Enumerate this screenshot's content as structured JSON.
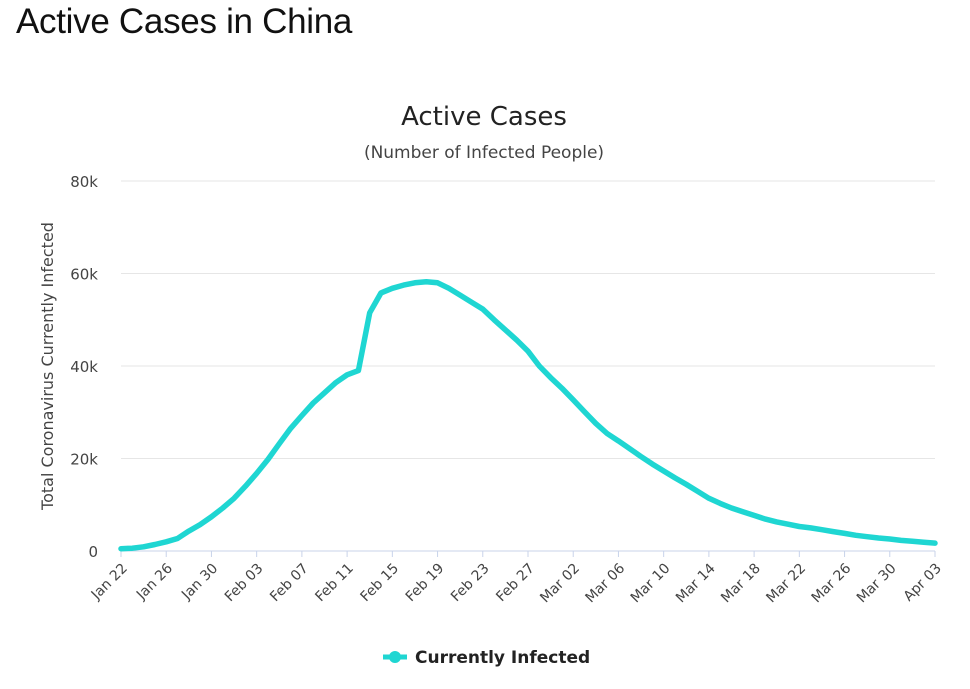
{
  "page": {
    "heading": "Active Cases in China"
  },
  "chart_data": {
    "type": "line",
    "title": "Active Cases",
    "subtitle": "(Number of Infected People)",
    "xlabel": "",
    "ylabel": "Total Coronavirus Currently Infected",
    "ylim": [
      0,
      80000
    ],
    "yticks": [
      0,
      20000,
      40000,
      60000,
      80000
    ],
    "ytick_labels": [
      "0",
      "20k",
      "40k",
      "60k",
      "80k"
    ],
    "xtick_labels": [
      "Jan 22",
      "Jan 26",
      "Jan 30",
      "Feb 03",
      "Feb 07",
      "Feb 11",
      "Feb 15",
      "Feb 19",
      "Feb 23",
      "Feb 27",
      "Mar 02",
      "Mar 06",
      "Mar 10",
      "Mar 14",
      "Mar 18",
      "Mar 22",
      "Mar 26",
      "Mar 30",
      "Apr 03"
    ],
    "x_start": "2020-01-22",
    "x_end": "2020-04-03",
    "grid": true,
    "legend_position": "bottom-center",
    "color": "#1fd6d2",
    "series": [
      {
        "name": "Currently Infected",
        "x": [
          "2020-01-22",
          "2020-01-23",
          "2020-01-24",
          "2020-01-25",
          "2020-01-26",
          "2020-01-27",
          "2020-01-28",
          "2020-01-29",
          "2020-01-30",
          "2020-01-31",
          "2020-02-01",
          "2020-02-02",
          "2020-02-03",
          "2020-02-04",
          "2020-02-05",
          "2020-02-06",
          "2020-02-07",
          "2020-02-08",
          "2020-02-09",
          "2020-02-10",
          "2020-02-11",
          "2020-02-12",
          "2020-02-13",
          "2020-02-14",
          "2020-02-15",
          "2020-02-16",
          "2020-02-17",
          "2020-02-18",
          "2020-02-19",
          "2020-02-20",
          "2020-02-21",
          "2020-02-22",
          "2020-02-23",
          "2020-02-24",
          "2020-02-25",
          "2020-02-26",
          "2020-02-27",
          "2020-02-28",
          "2020-02-29",
          "2020-03-01",
          "2020-03-02",
          "2020-03-03",
          "2020-03-04",
          "2020-03-05",
          "2020-03-06",
          "2020-03-07",
          "2020-03-08",
          "2020-03-09",
          "2020-03-10",
          "2020-03-11",
          "2020-03-12",
          "2020-03-13",
          "2020-03-14",
          "2020-03-15",
          "2020-03-16",
          "2020-03-17",
          "2020-03-18",
          "2020-03-19",
          "2020-03-20",
          "2020-03-21",
          "2020-03-22",
          "2020-03-23",
          "2020-03-24",
          "2020-03-25",
          "2020-03-26",
          "2020-03-27",
          "2020-03-28",
          "2020-03-29",
          "2020-03-30",
          "2020-03-31",
          "2020-04-01",
          "2020-04-02",
          "2020-04-03"
        ],
        "values": [
          500,
          600,
          900,
          1400,
          2000,
          2700,
          4300,
          5700,
          7400,
          9300,
          11400,
          14000,
          16800,
          19800,
          23200,
          26500,
          29300,
          32000,
          34200,
          36400,
          38100,
          39000,
          51500,
          55800,
          56800,
          57500,
          58000,
          58200,
          58000,
          56800,
          55300,
          53800,
          52300,
          50000,
          47800,
          45600,
          43200,
          40000,
          37500,
          35200,
          32700,
          30100,
          27600,
          25400,
          23800,
          22100,
          20400,
          18800,
          17300,
          15800,
          14400,
          12900,
          11400,
          10300,
          9300,
          8500,
          7700,
          6900,
          6300,
          5800,
          5300,
          5000,
          4600,
          4200,
          3800,
          3400,
          3100,
          2800,
          2600,
          2300,
          2100,
          1900,
          1700
        ]
      }
    ]
  }
}
